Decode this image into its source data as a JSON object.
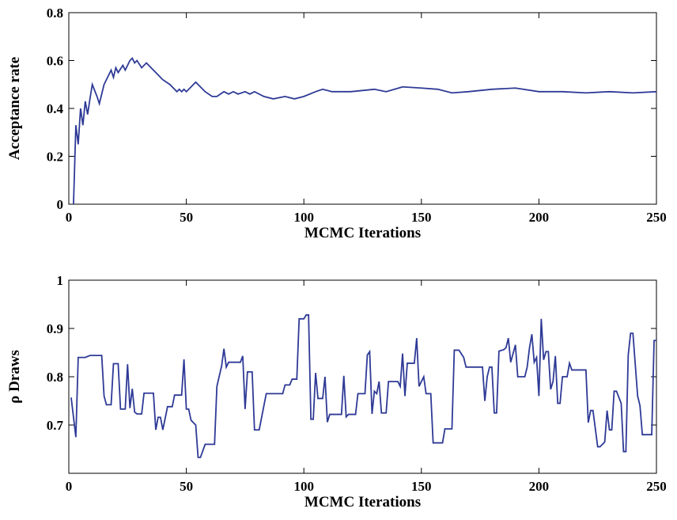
{
  "chart_data": [
    {
      "type": "line",
      "xlabel": "MCMC Iterations",
      "ylabel": "Acceptance rate",
      "xlim": [
        0,
        250
      ],
      "xticks": [
        0,
        50,
        100,
        150,
        200,
        250
      ],
      "ylim": [
        0,
        0.8
      ],
      "yticks": [
        0,
        0.2,
        0.4,
        0.6,
        0.8
      ],
      "series": [
        {
          "color": "#2e3a96",
          "x": [
            2,
            3,
            4,
            5,
            6,
            7,
            8,
            9,
            10,
            12,
            13,
            15,
            18,
            19,
            20,
            21,
            23,
            24,
            26,
            27,
            28,
            29,
            31,
            33,
            37,
            40,
            43,
            46,
            47,
            48,
            49,
            50,
            54,
            58,
            61,
            63,
            66,
            68,
            70,
            72,
            75,
            77,
            79,
            83,
            87,
            92,
            96,
            100,
            105,
            108,
            112,
            120,
            130,
            135,
            142,
            150,
            157,
            163,
            170,
            180,
            190,
            200,
            210,
            220,
            230,
            240,
            250
          ],
          "values": [
            0,
            0.33,
            0.25,
            0.4,
            0.33,
            0.43,
            0.375,
            0.44,
            0.5,
            0.45,
            0.42,
            0.5,
            0.56,
            0.53,
            0.57,
            0.55,
            0.58,
            0.56,
            0.6,
            0.61,
            0.59,
            0.6,
            0.57,
            0.59,
            0.55,
            0.52,
            0.5,
            0.47,
            0.48,
            0.47,
            0.48,
            0.47,
            0.51,
            0.47,
            0.45,
            0.45,
            0.47,
            0.46,
            0.47,
            0.46,
            0.47,
            0.46,
            0.47,
            0.45,
            0.44,
            0.45,
            0.44,
            0.45,
            0.47,
            0.48,
            0.47,
            0.47,
            0.48,
            0.47,
            0.49,
            0.485,
            0.48,
            0.465,
            0.47,
            0.48,
            0.485,
            0.47,
            0.47,
            0.465,
            0.47,
            0.465,
            0.47
          ]
        }
      ]
    },
    {
      "type": "line",
      "xlabel": "MCMC Iterations",
      "ylabel": "ρ  Draws",
      "xlim": [
        0,
        250
      ],
      "xticks": [
        0,
        50,
        100,
        150,
        200,
        250
      ],
      "ylim": [
        0.6,
        1
      ],
      "yticks": [
        0.7,
        0.8,
        0.9,
        1
      ],
      "series": [
        {
          "color": "#2e3a96",
          "x": [
            1,
            3,
            4,
            7,
            9,
            14,
            15,
            16,
            18,
            19,
            21,
            22,
            24,
            25,
            26,
            27,
            28,
            29,
            31,
            32,
            36,
            37,
            38,
            39,
            40,
            42,
            44,
            45,
            48,
            49,
            50,
            51,
            52,
            54,
            55,
            56,
            58,
            62,
            63,
            65,
            66,
            67,
            68,
            73,
            74,
            75,
            76,
            78,
            79,
            81,
            84,
            91,
            92,
            94,
            95,
            97,
            98,
            100,
            101,
            102,
            103,
            104,
            105,
            106,
            108,
            109,
            110,
            111,
            116,
            117,
            118,
            119,
            122,
            123,
            126,
            127,
            128,
            129,
            130,
            131,
            132,
            133,
            135,
            136,
            140,
            141,
            142,
            143,
            144,
            147,
            148,
            149,
            151,
            152,
            154,
            155,
            159,
            160,
            163,
            164,
            166,
            168,
            169,
            176,
            177,
            178,
            179,
            180,
            181,
            182,
            183,
            185,
            186,
            187,
            188,
            190,
            191,
            194,
            195,
            196,
            197,
            198,
            199,
            200,
            201,
            202,
            203,
            204,
            205,
            206,
            207,
            208,
            209,
            210,
            212,
            213,
            214,
            220,
            221,
            222,
            223,
            225,
            226,
            228,
            229,
            230,
            231,
            232,
            233,
            235,
            236,
            237,
            238,
            239,
            240,
            242,
            243,
            244,
            248,
            249,
            250
          ],
          "values": [
            0.757,
            0.675,
            0.84,
            0.84,
            0.844,
            0.844,
            0.76,
            0.742,
            0.742,
            0.827,
            0.827,
            0.733,
            0.733,
            0.826,
            0.735,
            0.775,
            0.727,
            0.723,
            0.723,
            0.766,
            0.766,
            0.69,
            0.716,
            0.716,
            0.69,
            0.738,
            0.738,
            0.762,
            0.762,
            0.836,
            0.733,
            0.733,
            0.71,
            0.7,
            0.633,
            0.633,
            0.66,
            0.66,
            0.78,
            0.822,
            0.858,
            0.82,
            0.83,
            0.83,
            0.843,
            0.733,
            0.81,
            0.81,
            0.69,
            0.69,
            0.765,
            0.765,
            0.783,
            0.783,
            0.795,
            0.795,
            0.92,
            0.92,
            0.928,
            0.928,
            0.712,
            0.712,
            0.808,
            0.755,
            0.755,
            0.8,
            0.706,
            0.722,
            0.722,
            0.802,
            0.717,
            0.722,
            0.722,
            0.765,
            0.765,
            0.845,
            0.852,
            0.723,
            0.77,
            0.765,
            0.79,
            0.725,
            0.725,
            0.79,
            0.79,
            0.78,
            0.848,
            0.76,
            0.828,
            0.828,
            0.88,
            0.78,
            0.8,
            0.765,
            0.765,
            0.663,
            0.663,
            0.692,
            0.692,
            0.855,
            0.855,
            0.84,
            0.82,
            0.82,
            0.75,
            0.8,
            0.82,
            0.82,
            0.725,
            0.725,
            0.853,
            0.856,
            0.86,
            0.88,
            0.83,
            0.866,
            0.8,
            0.8,
            0.82,
            0.86,
            0.888,
            0.83,
            0.84,
            0.76,
            0.92,
            0.835,
            0.852,
            0.852,
            0.774,
            0.79,
            0.843,
            0.745,
            0.745,
            0.8,
            0.8,
            0.828,
            0.814,
            0.814,
            0.705,
            0.73,
            0.73,
            0.655,
            0.655,
            0.665,
            0.73,
            0.69,
            0.69,
            0.77,
            0.77,
            0.745,
            0.645,
            0.645,
            0.845,
            0.89,
            0.89,
            0.76,
            0.74,
            0.68,
            0.68,
            0.875,
            0.875
          ]
        }
      ]
    }
  ]
}
